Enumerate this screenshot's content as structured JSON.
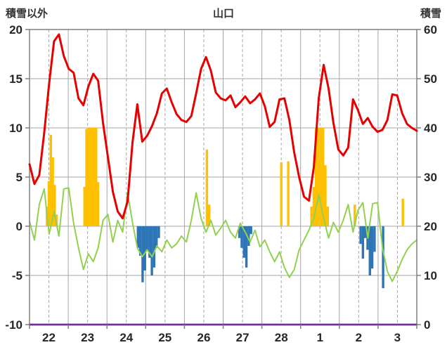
{
  "header": {
    "left_title": "積雪以外",
    "center_title": "山口",
    "right_title": "積雪"
  },
  "chart_data": {
    "type": "line",
    "title": "山口",
    "left_axis": {
      "title": "積雪以外",
      "min": -10,
      "max": 20,
      "ticks": [
        20,
        15,
        10,
        5,
        0,
        -5,
        -10
      ]
    },
    "right_axis": {
      "title": "積雪",
      "min": 0,
      "max": 60,
      "ticks": [
        60,
        50,
        40,
        30,
        20,
        10,
        0
      ]
    },
    "x_axis": {
      "labels": [
        "22",
        "23",
        "24",
        "25",
        "26",
        "27",
        "28",
        "1",
        "2",
        "3"
      ],
      "days": 10,
      "minor_gridlines": "dashed-at-half-days",
      "major_gridlines": "solid-at-day-boundaries"
    },
    "grid": {
      "color": "#a6a6a6",
      "frame_color": "#808080",
      "text_color": "#262626"
    },
    "series": [
      {
        "name": "red-line",
        "type": "line",
        "axis": "left",
        "color": "#e60000",
        "width": 3,
        "values": [
          6.3,
          4.3,
          5.2,
          9.5,
          14.5,
          18.8,
          19.5,
          17.3,
          16.0,
          15.6,
          13.0,
          12.3,
          14.2,
          15.5,
          14.8,
          10.5,
          7.0,
          3.5,
          1.5,
          0.8,
          2.5,
          8.5,
          12.4,
          8.6,
          9.2,
          10.2,
          11.5,
          13.5,
          14.0,
          12.6,
          11.4,
          10.8,
          10.6,
          11.2,
          13.5,
          16.0,
          17.2,
          15.8,
          13.6,
          13.0,
          12.8,
          13.3,
          12.1,
          12.6,
          13.2,
          12.5,
          12.9,
          13.5,
          12.2,
          10.1,
          10.6,
          12.9,
          13.0,
          10.8,
          7.5,
          5.0,
          3.0,
          2.6,
          6.0,
          13.0,
          16.4,
          14.0,
          10.5,
          7.8,
          7.2,
          8.0,
          12.9,
          11.8,
          10.4,
          11.0,
          10.1,
          9.6,
          9.8,
          10.8,
          13.4,
          13.3,
          11.5,
          10.4,
          10.0,
          9.7
        ]
      },
      {
        "name": "green-line",
        "type": "line",
        "axis": "left",
        "color": "#92d050",
        "width": 2,
        "values": [
          0.5,
          -1.4,
          2.2,
          3.8,
          -0.8,
          1.5,
          -1.0,
          3.8,
          3.9,
          0.3,
          -2.2,
          -4.4,
          -2.8,
          -3.6,
          -2.2,
          0.6,
          1.2,
          -1.6,
          0.6,
          -0.6,
          3.4,
          0.4,
          -2.2,
          -3.1,
          -2.4,
          -3.1,
          -2.0,
          -2.6,
          -1.4,
          -2.2,
          -1.8,
          -1.0,
          -1.6,
          0.6,
          3.4,
          0.8,
          -0.6,
          0.6,
          -0.9,
          -0.2,
          0.6,
          -0.6,
          -1.2,
          0.3,
          -0.6,
          -1.6,
          -0.4,
          -2.1,
          -1.4,
          -2.6,
          -3.6,
          -2.6,
          -4.2,
          -5.2,
          -4.4,
          -2.4,
          -1.4,
          -0.4,
          0.8,
          3.2,
          0.8,
          -1.2,
          0.4,
          -0.6,
          0.6,
          2.2,
          -0.6,
          1.6,
          2.4,
          -1.2,
          2.3,
          2.4,
          -2.2,
          -4.6,
          -5.6,
          -4.6,
          -3.4,
          -2.4,
          -1.8,
          -1.4
        ]
      },
      {
        "name": "orange-bars",
        "type": "bar",
        "axis": "left",
        "color": "#ffc000",
        "bars": [
          [
            0.45,
            2.0
          ],
          [
            0.5,
            4.6
          ],
          [
            0.55,
            9.3
          ],
          [
            0.6,
            7.0
          ],
          [
            0.65,
            4.2
          ],
          [
            0.7,
            1.2
          ],
          [
            1.42,
            4.0
          ],
          [
            1.47,
            9.9
          ],
          [
            1.52,
            10
          ],
          [
            1.57,
            10
          ],
          [
            1.62,
            10
          ],
          [
            1.67,
            10
          ],
          [
            1.72,
            10
          ],
          [
            1.77,
            4.5
          ],
          [
            4.58,
            7.8
          ],
          [
            4.64,
            2.2
          ],
          [
            6.5,
            6.5
          ],
          [
            6.68,
            6.6
          ],
          [
            7.28,
            2.0
          ],
          [
            7.34,
            4.0
          ],
          [
            7.4,
            10
          ],
          [
            7.46,
            10
          ],
          [
            7.52,
            10
          ],
          [
            7.58,
            10
          ],
          [
            7.64,
            6.2
          ],
          [
            7.7,
            2.0
          ],
          [
            8.4,
            2.2
          ],
          [
            9.64,
            2.8
          ]
        ]
      },
      {
        "name": "blue-bars",
        "type": "bar",
        "axis": "left",
        "color": "#2e75b6",
        "bars": [
          [
            2.8,
            -2.2
          ],
          [
            2.86,
            -3.0
          ],
          [
            2.92,
            -5.7
          ],
          [
            2.98,
            -4.5
          ],
          [
            3.04,
            -2.5
          ],
          [
            3.1,
            -3.2
          ],
          [
            3.16,
            -5.0
          ],
          [
            3.22,
            -4.2
          ],
          [
            3.28,
            -2.2
          ],
          [
            3.34,
            -1.2
          ],
          [
            5.42,
            -1.2
          ],
          [
            5.48,
            -2.2
          ],
          [
            5.54,
            -3.2
          ],
          [
            5.6,
            -4.2
          ],
          [
            5.66,
            -2.0
          ],
          [
            5.72,
            -0.8
          ],
          [
            8.55,
            -1.8
          ],
          [
            8.61,
            -3.3
          ],
          [
            8.67,
            -1.2
          ],
          [
            8.73,
            -2.4
          ],
          [
            8.79,
            -5.0
          ],
          [
            8.85,
            -4.3
          ],
          [
            8.91,
            -2.6
          ],
          [
            9.13,
            -6.3
          ]
        ]
      },
      {
        "name": "purple-line",
        "type": "line",
        "axis": "right",
        "color": "#7030a0",
        "width": 2.5,
        "values": [
          0,
          0
        ]
      }
    ]
  }
}
